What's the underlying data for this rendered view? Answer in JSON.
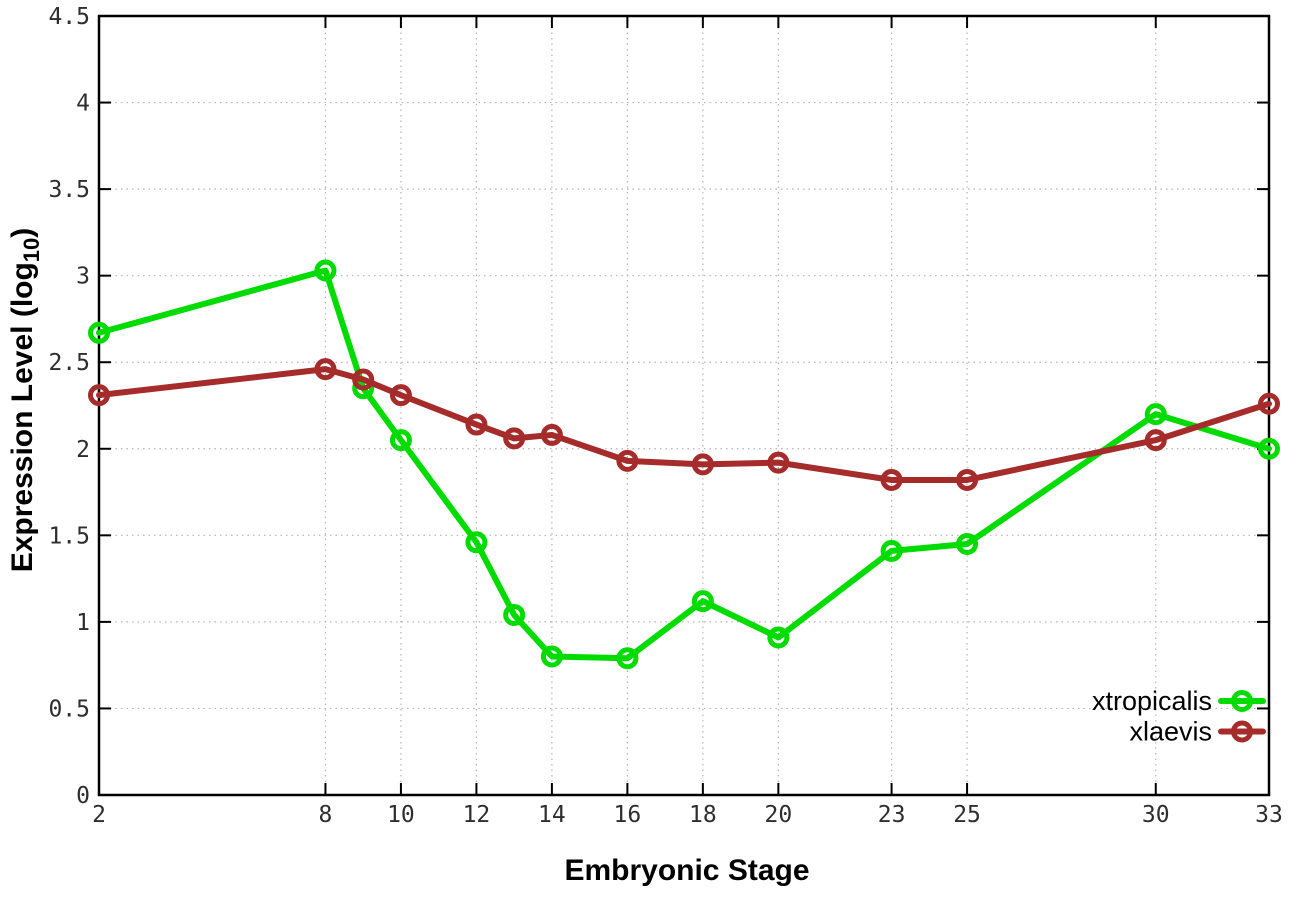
{
  "chart_data": {
    "type": "line",
    "title": "",
    "xlabel": "Embryonic Stage",
    "ylabel": "Expression Level (log10)",
    "ylabel_parts": {
      "main": "Expression Level (log",
      "sub": "10",
      "close": ")"
    },
    "x": [
      2,
      8,
      9,
      10,
      12,
      13,
      14,
      16,
      18,
      20,
      23,
      25,
      30,
      33
    ],
    "x_tick_values": [
      2,
      8,
      10,
      12,
      14,
      16,
      18,
      20,
      23,
      25,
      30,
      33
    ],
    "x_tick_labels": [
      "2",
      "8",
      "10",
      "12",
      "14",
      "16",
      "18",
      "20",
      "23",
      "25",
      "30",
      "33"
    ],
    "y_tick_values": [
      0,
      0.5,
      1,
      1.5,
      2,
      2.5,
      3,
      3.5,
      4,
      4.5
    ],
    "y_tick_labels": [
      "0",
      "0.5",
      "1",
      "1.5",
      "2",
      "2.5",
      "3",
      "3.5",
      "4",
      "4.5"
    ],
    "xlim": [
      2,
      33
    ],
    "ylim": [
      0,
      4.5
    ],
    "grid": true,
    "grid_style": "dotted",
    "legend_position": "inside-bottom-right",
    "marker": "open-circle",
    "series": [
      {
        "name": "xtropicalis",
        "color": "#00DC00",
        "values": [
          2.67,
          3.03,
          2.35,
          2.05,
          1.46,
          1.04,
          0.8,
          0.79,
          1.12,
          0.91,
          1.41,
          1.45,
          2.2,
          2.0
        ]
      },
      {
        "name": "xlaevis",
        "color": "#A62B2B",
        "values": [
          2.31,
          2.46,
          2.4,
          2.31,
          2.14,
          2.06,
          2.08,
          1.93,
          1.91,
          1.92,
          1.82,
          1.82,
          2.05,
          2.26
        ]
      }
    ],
    "colors": {
      "axis": "#000000",
      "grid": "#b5b5b5",
      "tick_text": "#2e2e2e"
    }
  }
}
